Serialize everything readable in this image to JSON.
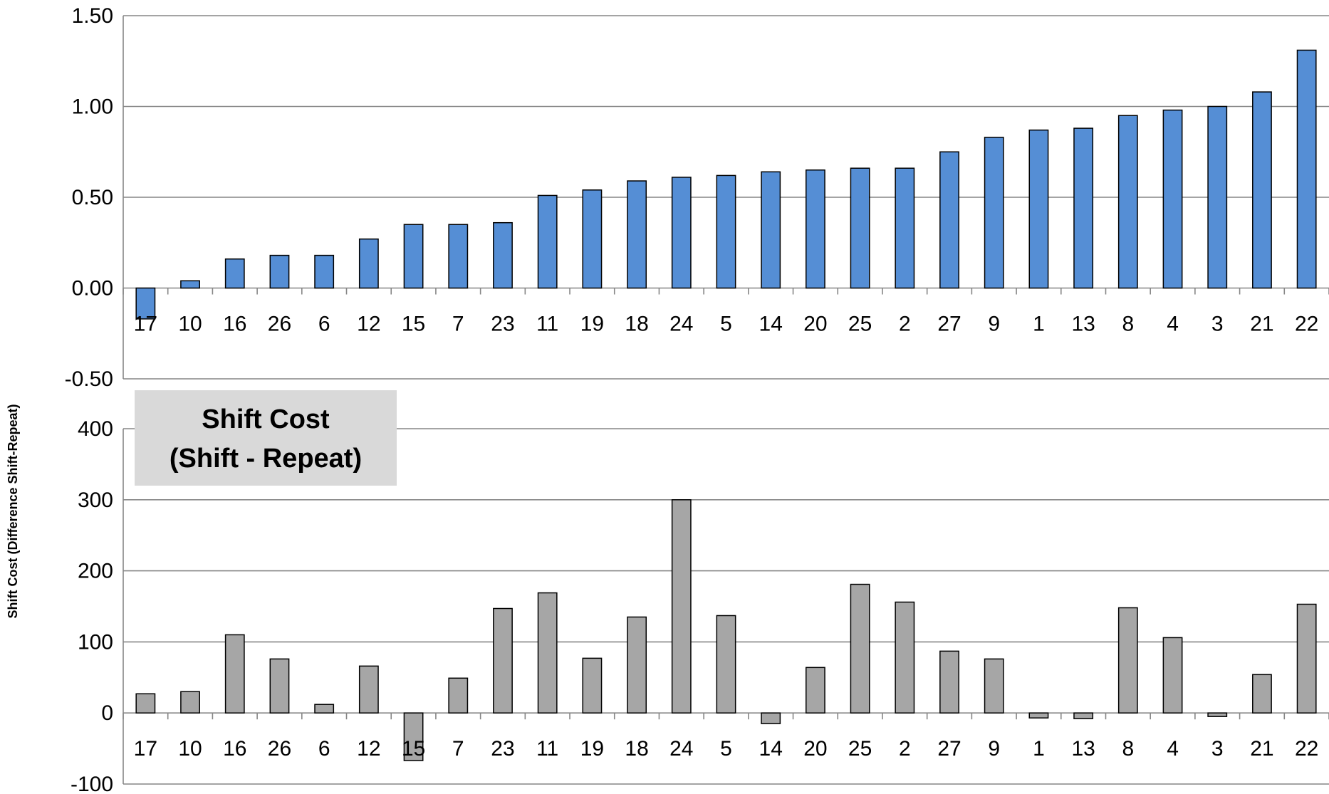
{
  "chart_data": [
    {
      "type": "bar",
      "title": "",
      "xlabel": "",
      "ylabel": "",
      "ylim": [
        -0.5,
        1.5
      ],
      "yticks": [
        "-0.50",
        "0.00",
        "0.50",
        "1.00",
        "1.50"
      ],
      "grid": true,
      "bar_color": "#558ED5",
      "categories": [
        "17",
        "10",
        "16",
        "26",
        "6",
        "12",
        "15",
        "7",
        "23",
        "11",
        "19",
        "18",
        "24",
        "5",
        "14",
        "20",
        "25",
        "2",
        "27",
        "9",
        "1",
        "13",
        "8",
        "4",
        "3",
        "21",
        "22"
      ],
      "values": [
        -0.17,
        0.04,
        0.16,
        0.18,
        0.18,
        0.27,
        0.35,
        0.35,
        0.36,
        0.51,
        0.54,
        0.59,
        0.61,
        0.62,
        0.64,
        0.65,
        0.66,
        0.66,
        0.75,
        0.83,
        0.87,
        0.88,
        0.95,
        0.98,
        1.0,
        1.08,
        1.31
      ]
    },
    {
      "type": "bar",
      "title": "Shift Cost (Shift - Repeat)",
      "title_lines": [
        "Shift Cost",
        "(Shift - Repeat)"
      ],
      "xlabel": "",
      "ylabel": "Shift Cost (Difference Shift-Repeat)",
      "ylim": [
        -100,
        400
      ],
      "yticks": [
        "-100",
        "0",
        "100",
        "200",
        "300",
        "400"
      ],
      "grid": true,
      "bar_color": "#A6A6A6",
      "categories": [
        "17",
        "10",
        "16",
        "26",
        "6",
        "12",
        "15",
        "7",
        "23",
        "11",
        "19",
        "18",
        "24",
        "5",
        "14",
        "20",
        "25",
        "2",
        "27",
        "9",
        "1",
        "13",
        "8",
        "4",
        "3",
        "21",
        "22"
      ],
      "values": [
        27,
        30,
        110,
        76,
        12,
        66,
        -67,
        49,
        147,
        169,
        77,
        135,
        300,
        137,
        -15,
        64,
        181,
        156,
        87,
        76,
        -7,
        -8,
        148,
        106,
        -5,
        54,
        153
      ]
    }
  ]
}
